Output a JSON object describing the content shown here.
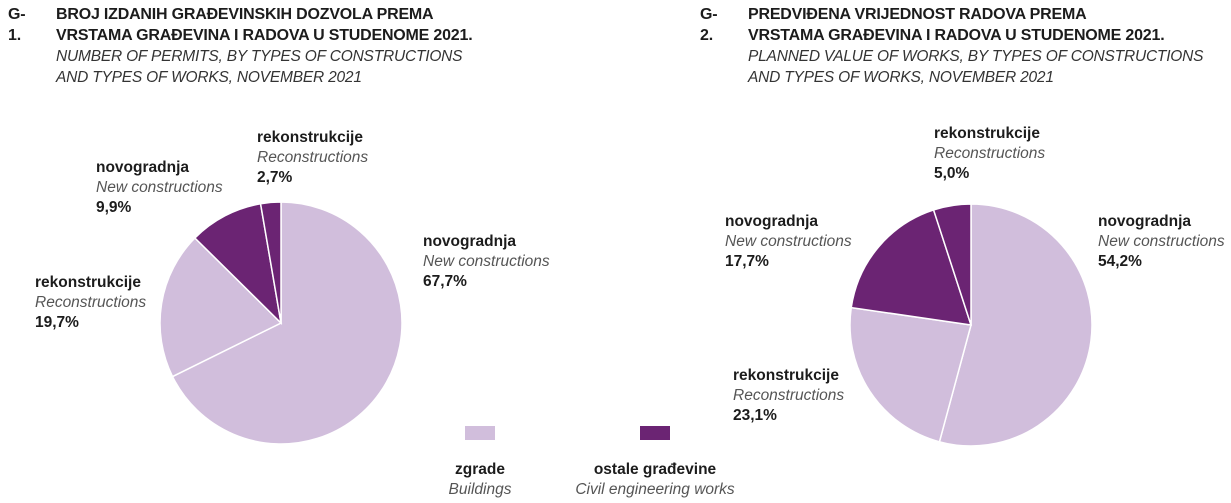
{
  "colors": {
    "buildings": "#d1bedc",
    "civil": "#6b2473"
  },
  "legend": [
    {
      "hr": "zgrade",
      "en": "Buildings",
      "color": "#d1bedc"
    },
    {
      "hr": "ostale građevine",
      "en": "Civil engineering works",
      "color": "#6b2473"
    }
  ],
  "chart_data": [
    {
      "type": "pie",
      "code": "G-1.",
      "title_hr_1": "BROJ IZDANIH GRAĐEVINSKIH DOZVOLA PREMA",
      "title_hr_2": "VRSTAMA GRAĐEVINA I RADOVA U STUDENOME 2021.",
      "title_en_1": "NUMBER OF PERMITS, BY TYPES OF CONSTRUCTIONS",
      "title_en_2": "AND TYPES OF WORKS, NOVEMBER 2021",
      "slices": [
        {
          "group": "buildings",
          "hr": "novogradnja",
          "en": "New constructions",
          "value": 67.7,
          "label": "67,7%"
        },
        {
          "group": "buildings",
          "hr": "rekonstrukcije",
          "en": "Reconstructions",
          "value": 19.7,
          "label": "19,7%"
        },
        {
          "group": "civil",
          "hr": "novogradnja",
          "en": "New constructions",
          "value": 9.9,
          "label": "9,9%"
        },
        {
          "group": "civil",
          "hr": "rekonstrukcije",
          "en": "Reconstructions",
          "value": 2.7,
          "label": "2,7%"
        }
      ]
    },
    {
      "type": "pie",
      "code": "G-2.",
      "title_hr_1": "PREDVIĐENA VRIJEDNOST RADOVA PREMA",
      "title_hr_2": "VRSTAMA GRAĐEVINA I RADOVA U STUDENOME 2021.",
      "title_en_1": "PLANNED VALUE OF WORKS, BY TYPES OF CONSTRUCTIONS",
      "title_en_2": "AND TYPES OF WORKS, NOVEMBER 2021",
      "slices": [
        {
          "group": "buildings",
          "hr": "novogradnja",
          "en": "New constructions",
          "value": 54.2,
          "label": "54,2%"
        },
        {
          "group": "buildings",
          "hr": "rekonstrukcije",
          "en": "Reconstructions",
          "value": 23.1,
          "label": "23,1%"
        },
        {
          "group": "civil",
          "hr": "novogradnja",
          "en": "New constructions",
          "value": 17.7,
          "label": "17,7%"
        },
        {
          "group": "civil",
          "hr": "rekonstrukcije",
          "en": "Reconstructions",
          "value": 5.0,
          "label": "5,0%"
        }
      ]
    }
  ]
}
